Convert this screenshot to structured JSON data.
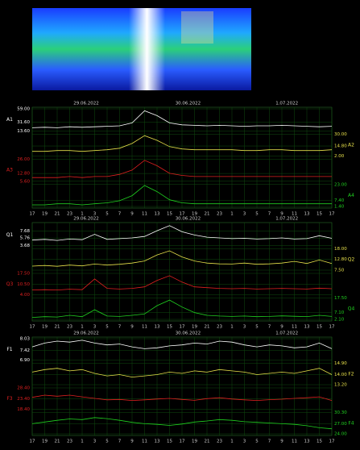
{
  "chart_data": [
    {
      "type": "line",
      "dates": [
        "29.06.2022",
        "30.06.2022",
        "1.07.2022"
      ],
      "categories": [
        "17",
        "19",
        "21",
        "23",
        "1",
        "3",
        "5",
        "7",
        "9",
        "11",
        "13",
        "15",
        "17",
        "19",
        "21",
        "23",
        "1",
        "3",
        "5",
        "7",
        "9",
        "11",
        "13",
        "15",
        "17"
      ],
      "series": [
        {
          "name": "A1",
          "color": "#ffffff",
          "ylim": [
            13.6,
            59
          ],
          "yticks": [
            {
              "value": 13.6,
              "label": "13.60"
            },
            {
              "value": 31.6,
              "label": "31.60"
            },
            {
              "value": 59,
              "label": "59.00"
            }
          ],
          "values": [
            20,
            21,
            20,
            22,
            21,
            22,
            23,
            24,
            30,
            55,
            45,
            30,
            26,
            25,
            24,
            25,
            24,
            23,
            24,
            24,
            25,
            24,
            23,
            22,
            23
          ]
        },
        {
          "name": "A2",
          "color": "#e6e04a",
          "ylim": [
            2,
            30
          ],
          "yticks": [
            {
              "value": 2,
              "label": "2.00"
            },
            {
              "value": 14.8,
              "label": "14.80"
            },
            {
              "value": 30,
              "label": "30.00"
            }
          ],
          "values": [
            8,
            8,
            9,
            9,
            8,
            9,
            10,
            12,
            18,
            28,
            22,
            14,
            11,
            10,
            10,
            10,
            10,
            9,
            9,
            10,
            10,
            9,
            9,
            9,
            10
          ]
        },
        {
          "name": "A3",
          "color": "#e02020",
          "ylim": [
            5.6,
            26
          ],
          "yticks": [
            {
              "value": 5.6,
              "label": "5.60"
            },
            {
              "value": 12.8,
              "label": "12.80"
            },
            {
              "value": 26,
              "label": "26.00"
            }
          ],
          "values": [
            9,
            9,
            9,
            10,
            9,
            10,
            10,
            12,
            16,
            25,
            20,
            13,
            11,
            10,
            10,
            10,
            10,
            10,
            10,
            10,
            10,
            10,
            10,
            10,
            10
          ]
        },
        {
          "name": "A4",
          "color": "#20d020",
          "ylim": [
            1.4,
            23
          ],
          "yticks": [
            {
              "value": 1.4,
              "label": "1.40"
            },
            {
              "value": 7.4,
              "label": "7.40"
            },
            {
              "value": 23,
              "label": "23.00"
            }
          ],
          "values": [
            3,
            3,
            4,
            4,
            3,
            4,
            5,
            7,
            12,
            22,
            16,
            8,
            5,
            4,
            4,
            4,
            4,
            4,
            4,
            4,
            4,
            4,
            4,
            4,
            4
          ]
        }
      ]
    },
    {
      "type": "line",
      "dates": [
        "29.06.2022",
        "30.06.2022",
        "1.07.2022"
      ],
      "categories": [
        "17",
        "19",
        "21",
        "23",
        "1",
        "3",
        "5",
        "7",
        "9",
        "11",
        "13",
        "15",
        "17",
        "19",
        "21",
        "23",
        "1",
        "3",
        "5",
        "7",
        "9",
        "11",
        "13",
        "15",
        "17"
      ],
      "series": [
        {
          "name": "Q1",
          "color": "#ffffff",
          "ylim": [
            3.68,
            9.6
          ],
          "yticks": [
            {
              "value": 3.68,
              "label": "3.68"
            },
            {
              "value": 5.76,
              "label": "5.76"
            },
            {
              "value": 7.68,
              "label": "7.68"
            }
          ],
          "values": [
            5.2,
            5.4,
            5.1,
            5.5,
            5.3,
            6.8,
            5.4,
            5.6,
            5.8,
            6.2,
            7.8,
            9.2,
            7.5,
            6.6,
            6.0,
            5.8,
            5.6,
            5.7,
            5.5,
            5.6,
            5.8,
            5.5,
            5.6,
            6.4,
            5.7
          ]
        },
        {
          "name": "Q2",
          "color": "#e6e04a",
          "ylim": [
            7.5,
            18
          ],
          "yticks": [
            {
              "value": 7.5,
              "label": "7.50"
            },
            {
              "value": 12.8,
              "label": "12.80"
            },
            {
              "value": 18,
              "label": "18.00"
            }
          ],
          "values": [
            9.5,
            9.8,
            9.4,
            10,
            9.6,
            10.5,
            10,
            10.4,
            11,
            12,
            15,
            17,
            14,
            12,
            11,
            10.6,
            10.5,
            11,
            10.4,
            10.6,
            11,
            11.8,
            10.8,
            12.5,
            10.8
          ]
        },
        {
          "name": "Q3",
          "color": "#e02020",
          "ylim": [
            4,
            17.5
          ],
          "yticks": [
            {
              "value": 4,
              "label": "4.00"
            },
            {
              "value": 10.5,
              "label": "10.50"
            },
            {
              "value": 17.5,
              "label": "17.50"
            }
          ],
          "values": [
            7,
            7.2,
            7,
            7.5,
            7.2,
            14,
            8,
            7.6,
            8,
            9,
            13,
            16,
            12,
            9,
            8.5,
            8,
            7.8,
            8,
            7.6,
            7.8,
            8,
            7.8,
            7.6,
            8.2,
            7.8
          ]
        },
        {
          "name": "Q4",
          "color": "#20d020",
          "ylim": [
            2.1,
            17.5
          ],
          "yticks": [
            {
              "value": 2.1,
              "label": "2.10"
            },
            {
              "value": 7.1,
              "label": "7.10"
            },
            {
              "value": 17.5,
              "label": "17.50"
            }
          ],
          "values": [
            3.5,
            4,
            3.8,
            5,
            4,
            9,
            4.5,
            4.2,
            5,
            6,
            12,
            16,
            11,
            7,
            5,
            4.5,
            4.2,
            4.5,
            4,
            4.2,
            4.6,
            4.3,
            4.1,
            5,
            4.2
          ]
        }
      ]
    },
    {
      "type": "line",
      "dates": [
        "29.06.2022",
        "30.06.2022",
        "1.07.2022"
      ],
      "categories": [
        "17",
        "19",
        "21",
        "23",
        "1",
        "3",
        "5",
        "7",
        "9",
        "11",
        "13",
        "15",
        "17",
        "19",
        "21",
        "23",
        "1",
        "3",
        "5",
        "7",
        "9",
        "11",
        "13",
        "15",
        "17"
      ],
      "series": [
        {
          "name": "F1",
          "color": "#ffffff",
          "ylim": [
            6.9,
            8.03
          ],
          "yticks": [
            {
              "value": 6.9,
              "label": "6.90"
            },
            {
              "value": 7.42,
              "label": "7.42"
            },
            {
              "value": 8.03,
              "label": "8.03"
            }
          ],
          "values": [
            7.6,
            7.8,
            7.9,
            7.85,
            7.95,
            7.8,
            7.7,
            7.75,
            7.6,
            7.5,
            7.55,
            7.65,
            7.7,
            7.8,
            7.75,
            7.9,
            7.85,
            7.7,
            7.6,
            7.7,
            7.65,
            7.55,
            7.6,
            7.8,
            7.5
          ]
        },
        {
          "name": "F2",
          "color": "#e6e04a",
          "ylim": [
            13.2,
            14.9
          ],
          "yticks": [
            {
              "value": 13.2,
              "label": "13.20"
            },
            {
              "value": 14,
              "label": "14.00"
            },
            {
              "value": 14.9,
              "label": "14.90"
            }
          ],
          "values": [
            14.2,
            14.4,
            14.5,
            14.3,
            14.4,
            14.1,
            13.9,
            14.0,
            13.8,
            13.9,
            14.0,
            14.2,
            14.1,
            14.3,
            14.2,
            14.4,
            14.3,
            14.2,
            14.0,
            14.1,
            14.2,
            14.1,
            14.3,
            14.5,
            14.0
          ]
        },
        {
          "name": "F3",
          "color": "#e02020",
          "ylim": [
            18.4,
            28.4
          ],
          "yticks": [
            {
              "value": 18.4,
              "label": "18.40"
            },
            {
              "value": 23.4,
              "label": "23.40"
            },
            {
              "value": 28.4,
              "label": "28.40"
            }
          ],
          "values": [
            24,
            25,
            24.5,
            25,
            24.2,
            23.5,
            22.8,
            23,
            22.5,
            22.8,
            23.2,
            23.5,
            23,
            22.6,
            23.4,
            23.8,
            23.2,
            22.8,
            22.5,
            22.9,
            23.1,
            23.5,
            23.8,
            24.2,
            22.5
          ]
        },
        {
          "name": "F4",
          "color": "#20d020",
          "ylim": [
            24,
            30.3
          ],
          "yticks": [
            {
              "value": 24,
              "label": "24.00"
            },
            {
              "value": 27,
              "label": "27.00"
            },
            {
              "value": 30.3,
              "label": "30.30"
            }
          ],
          "values": [
            27,
            27.5,
            28,
            28.4,
            28.2,
            28.8,
            28.5,
            28,
            27.4,
            27,
            26.8,
            26.5,
            26.9,
            27.5,
            27.8,
            28.2,
            28,
            27.6,
            27.4,
            27.2,
            27,
            26.8,
            26.4,
            25.8,
            25.5
          ]
        }
      ]
    }
  ]
}
